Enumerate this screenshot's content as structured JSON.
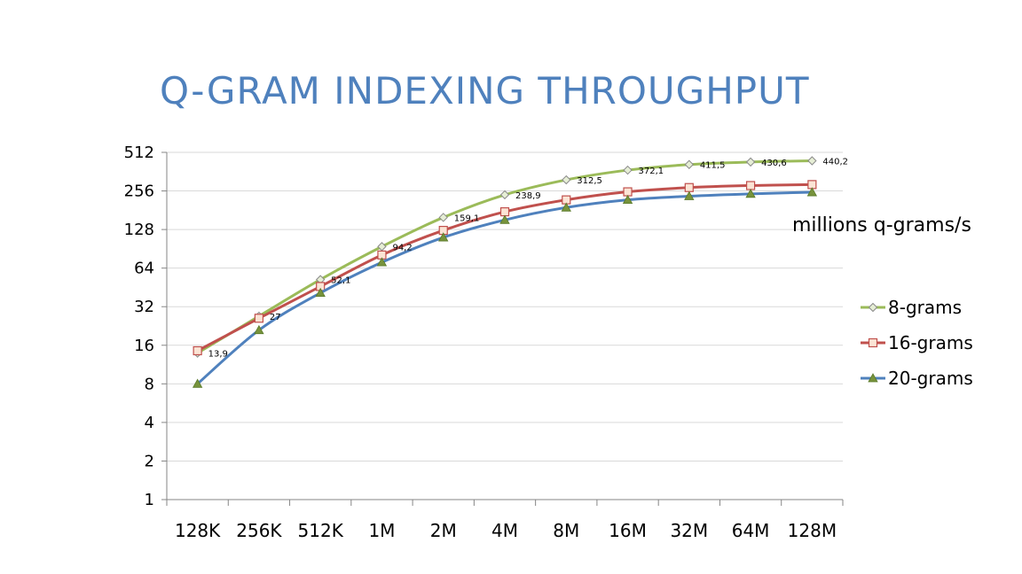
{
  "title": "Q-GRAM INDEXING THROUGHPUT",
  "chart_data": {
    "type": "line",
    "categories": [
      "128K",
      "256K",
      "512K",
      "1M",
      "2M",
      "4M",
      "8M",
      "16M",
      "32M",
      "64M",
      "128M"
    ],
    "y_scale": "log2",
    "ylim": [
      1,
      512
    ],
    "y_ticks": [
      "1",
      "2",
      "4",
      "8",
      "16",
      "32",
      "64",
      "128",
      "256",
      "512"
    ],
    "unit_label": "millions q-grams/s",
    "legend_position": "right",
    "grid": true,
    "series": [
      {
        "name": "8-grams",
        "color": "#9bbb59",
        "marker": "diamond",
        "values": [
          13.9,
          27,
          52.1,
          94.2,
          159.1,
          238.9,
          312.5,
          372.1,
          411.5,
          430.6,
          440.2
        ],
        "data_labels": [
          "13,9",
          "27",
          "52,1",
          "94,2",
          "159,1",
          "238,9",
          "312,5",
          "372,1",
          "411,5",
          "430,6",
          "440,2"
        ]
      },
      {
        "name": "16-grams",
        "color": "#c0504d",
        "marker": "square",
        "values": [
          14.5,
          26,
          46,
          81,
          126,
          176,
          218,
          252,
          272,
          282,
          287
        ]
      },
      {
        "name": "20-grams",
        "color": "#4f81bd",
        "marker": "triangle",
        "values": [
          8,
          21,
          41,
          71,
          111,
          152,
          190,
          218,
          233,
          243,
          250
        ]
      }
    ]
  }
}
